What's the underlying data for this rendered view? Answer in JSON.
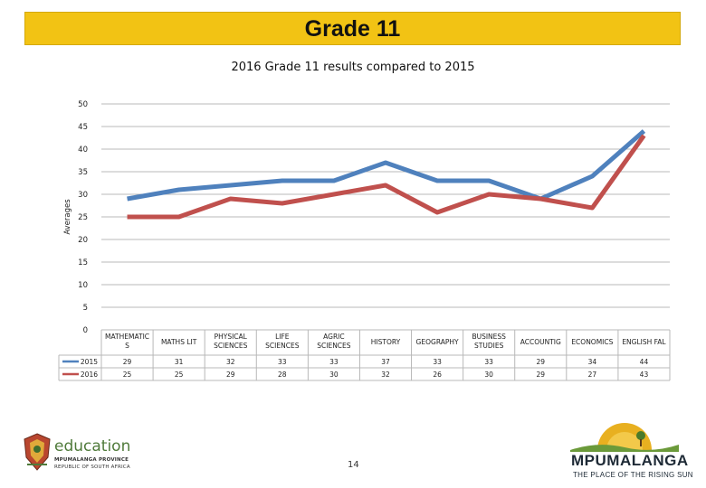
{
  "banner": {
    "title": "Grade 11"
  },
  "page": {
    "number": "14"
  },
  "branding": {
    "education_word": "education",
    "province_line": "MPUMALANGA PROVINCE",
    "republic_line": "REPUBLIC OF SOUTH AFRICA",
    "mp_word": "MPUMALANGA",
    "mp_slogan": "THE PLACE OF THE RISING SUN"
  },
  "chart_data": {
    "type": "line",
    "title": "2016 Grade 11 results compared to 2015",
    "ylabel": "Averages",
    "xlabel": "",
    "ylim": [
      0,
      50
    ],
    "yticks": [
      0,
      5,
      10,
      15,
      20,
      25,
      30,
      35,
      40,
      45,
      50
    ],
    "grid": true,
    "legend": "data-table",
    "categories": [
      [
        "MATHEMATIC",
        "S"
      ],
      [
        "MATHS LIT"
      ],
      [
        "PHYSICAL",
        "SCIENCES"
      ],
      [
        "LIFE",
        "SCIENCES"
      ],
      [
        "AGRIC",
        "SCIENCES"
      ],
      [
        "HISTORY"
      ],
      [
        "GEOGRAPHY"
      ],
      [
        "BUSINESS",
        "STUDIES"
      ],
      [
        "ACCOUNTIG"
      ],
      [
        "ECONOMICS"
      ],
      [
        "ENGLISH FAL"
      ]
    ],
    "series": [
      {
        "name": "2015",
        "color": "#4f81bd",
        "values": [
          29,
          31,
          32,
          33,
          33,
          37,
          33,
          33,
          29,
          34,
          44
        ]
      },
      {
        "name": "2016",
        "color": "#c0504d",
        "values": [
          25,
          25,
          29,
          28,
          30,
          32,
          26,
          30,
          29,
          27,
          43
        ]
      }
    ]
  }
}
